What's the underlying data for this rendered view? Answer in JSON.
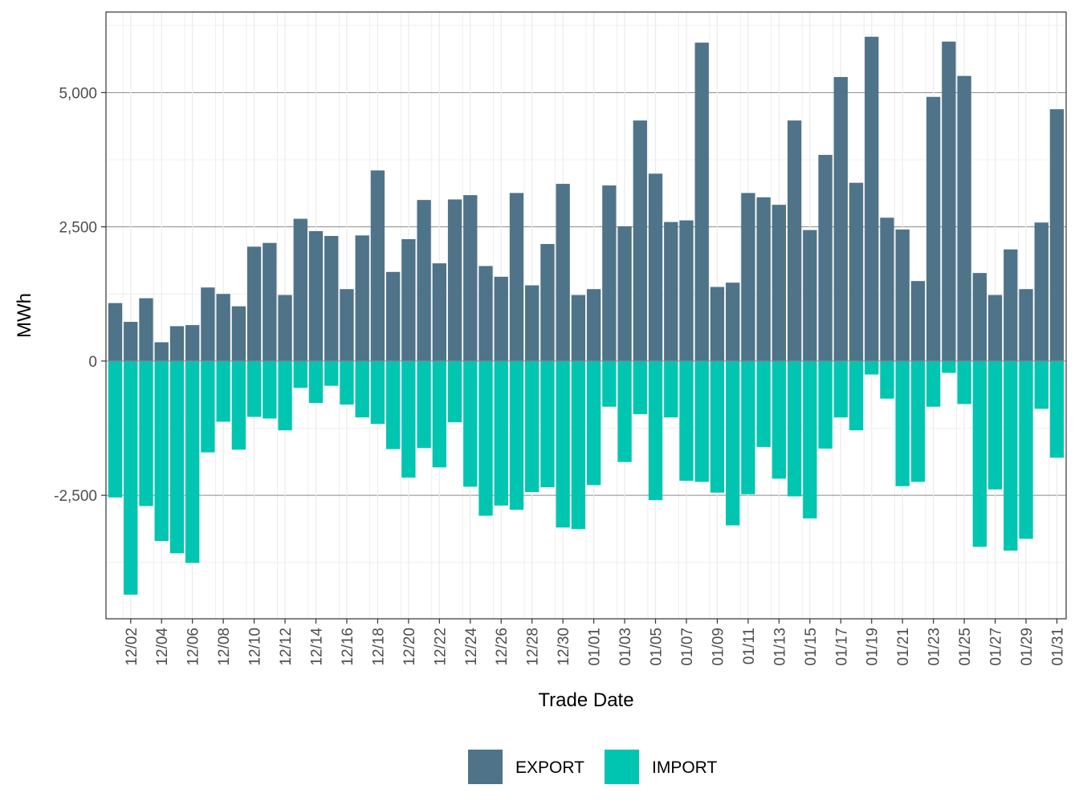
{
  "chart_data": {
    "type": "bar",
    "stacked": "diverging",
    "xlabel": "Trade Date",
    "ylabel": "MWh",
    "ylim": [
      -4800,
      6500
    ],
    "yticks": [
      -2500,
      0,
      2500,
      5000
    ],
    "ytick_labels": [
      "-2,500",
      "0",
      "2,500",
      "5,000"
    ],
    "grid": true,
    "legend_position": "bottom",
    "categories": [
      "12/01",
      "12/02",
      "12/03",
      "12/04",
      "12/05",
      "12/06",
      "12/07",
      "12/08",
      "12/09",
      "12/10",
      "12/11",
      "12/12",
      "12/13",
      "12/14",
      "12/15",
      "12/16",
      "12/17",
      "12/18",
      "12/19",
      "12/20",
      "12/21",
      "12/22",
      "12/23",
      "12/24",
      "12/25",
      "12/26",
      "12/27",
      "12/28",
      "12/29",
      "12/30",
      "12/31",
      "01/01",
      "01/02",
      "01/03",
      "01/04",
      "01/05",
      "01/06",
      "01/07",
      "01/08",
      "01/09",
      "01/10",
      "01/11",
      "01/12",
      "01/13",
      "01/14",
      "01/15",
      "01/16",
      "01/17",
      "01/18",
      "01/19",
      "01/20",
      "01/21",
      "01/22",
      "01/23",
      "01/24",
      "01/25",
      "01/26",
      "01/27",
      "01/28",
      "01/29",
      "01/30",
      "01/31"
    ],
    "xtick_labels": [
      "12/02",
      "12/04",
      "12/06",
      "12/08",
      "12/10",
      "12/12",
      "12/14",
      "12/16",
      "12/18",
      "12/20",
      "12/22",
      "12/24",
      "12/26",
      "12/28",
      "12/30",
      "01/01",
      "01/03",
      "01/05",
      "01/07",
      "01/09",
      "01/11",
      "01/13",
      "01/15",
      "01/17",
      "01/19",
      "01/21",
      "01/23",
      "01/25",
      "01/27",
      "01/29",
      "01/31"
    ],
    "series": [
      {
        "name": "EXPORT",
        "color": "#4f7388",
        "values": [
          1080,
          730,
          1170,
          350,
          650,
          670,
          1370,
          1250,
          1020,
          2130,
          2200,
          1230,
          2650,
          2420,
          2330,
          1340,
          2340,
          3550,
          1660,
          2270,
          3000,
          1820,
          3010,
          3090,
          1770,
          1570,
          3130,
          1410,
          2180,
          3300,
          1230,
          1340,
          3270,
          2510,
          4480,
          3490,
          2590,
          2620,
          5930,
          1380,
          1460,
          3130,
          3050,
          2910,
          4480,
          2440,
          3840,
          5290,
          3320,
          6040,
          2670,
          2450,
          1490,
          4920,
          5950,
          5310,
          1640,
          1230,
          2080,
          1340,
          2580,
          4690
        ]
      },
      {
        "name": "IMPORT",
        "color": "#00c5b0",
        "values": [
          -2540,
          -4350,
          -2700,
          -3350,
          -3580,
          -3760,
          -1700,
          -1130,
          -1650,
          -1040,
          -1070,
          -1290,
          -500,
          -780,
          -460,
          -810,
          -1050,
          -1170,
          -1640,
          -2170,
          -1620,
          -1980,
          -1140,
          -2340,
          -2880,
          -2690,
          -2770,
          -2440,
          -2350,
          -3100,
          -3130,
          -2310,
          -850,
          -1880,
          -990,
          -2590,
          -1050,
          -2230,
          -2250,
          -2450,
          -3060,
          -2480,
          -1600,
          -2190,
          -2520,
          -2930,
          -1630,
          -1050,
          -1290,
          -250,
          -700,
          -2330,
          -2250,
          -850,
          -220,
          -800,
          -3460,
          -2390,
          -3530,
          -3310,
          -890,
          -1800
        ]
      }
    ]
  }
}
